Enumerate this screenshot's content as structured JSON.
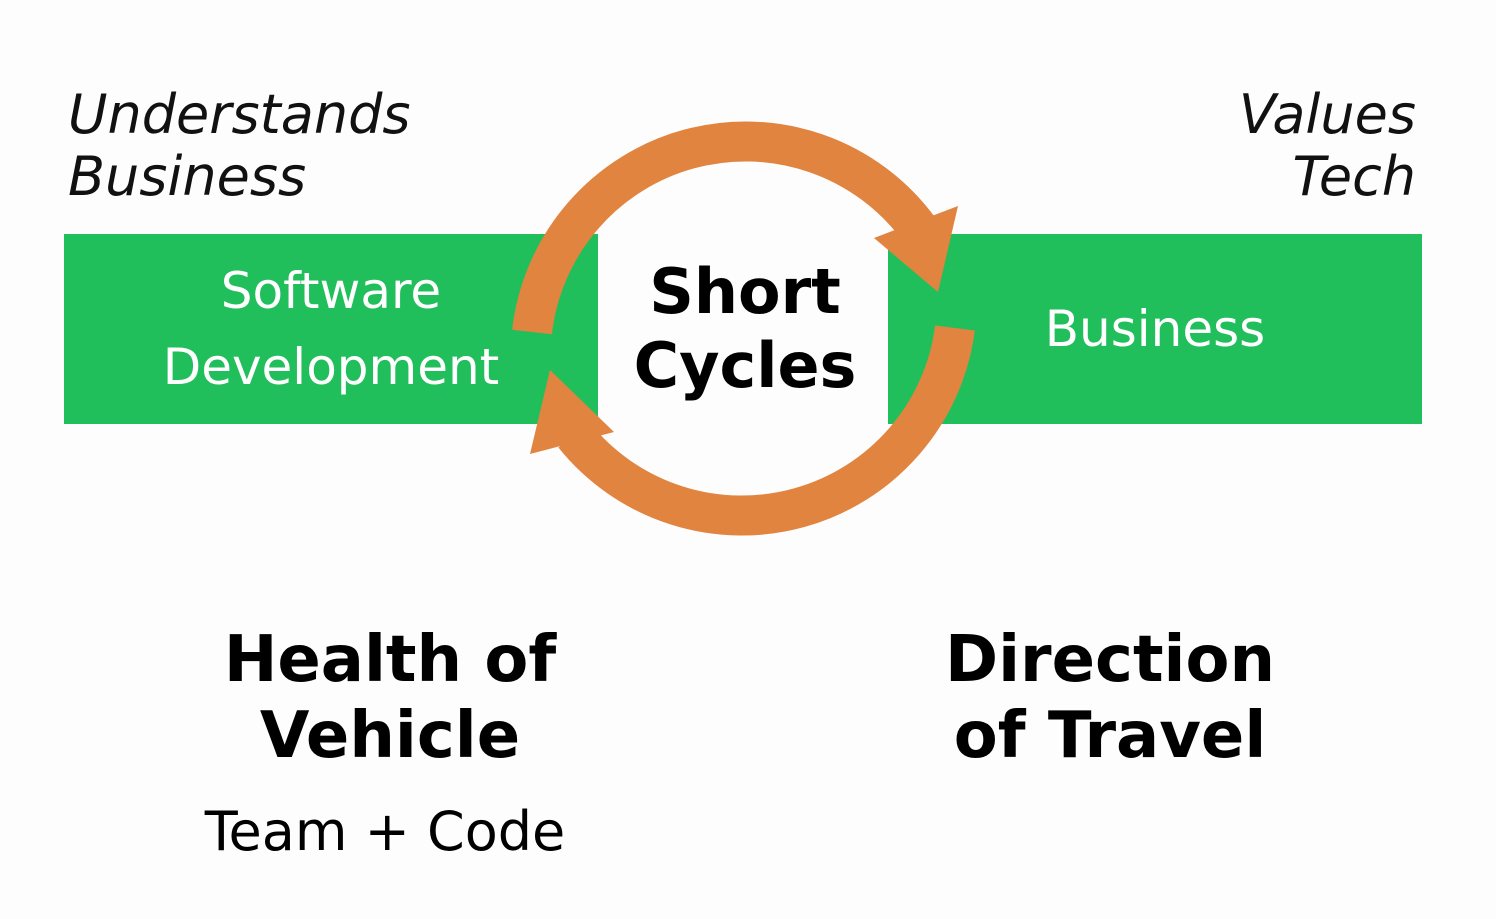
{
  "captions": {
    "left": [
      "Understands",
      "Business"
    ],
    "right": [
      "Values",
      "Tech"
    ]
  },
  "boxes": {
    "left": [
      "Software",
      "Development"
    ],
    "right": [
      "Business"
    ]
  },
  "center": [
    "Short",
    "Cycles"
  ],
  "bottom": {
    "left_title": [
      "Health of",
      "Vehicle"
    ],
    "left_subtitle": "Team + Code",
    "right_title": [
      "Direction",
      "of Travel"
    ]
  },
  "colors": {
    "box_green": "#21bf5b",
    "arrow_orange": "#e08440"
  }
}
